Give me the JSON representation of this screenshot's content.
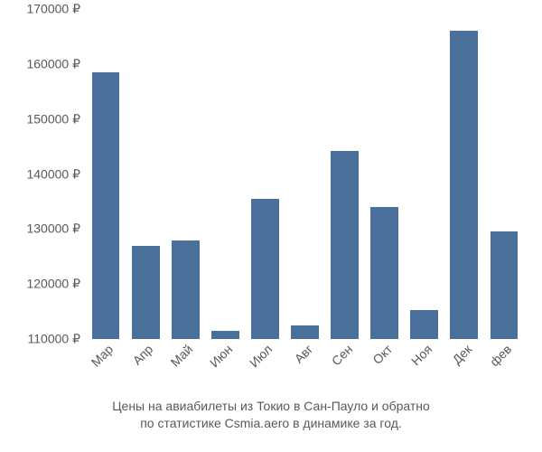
{
  "chart": {
    "type": "bar",
    "categories": [
      "Мар",
      "Апр",
      "Май",
      "Июн",
      "Июл",
      "Авг",
      "Сен",
      "Окт",
      "Ноя",
      "Дек",
      "фев"
    ],
    "values": [
      158500,
      127000,
      128000,
      111500,
      135500,
      112400,
      144200,
      134000,
      115200,
      166000,
      129500
    ],
    "bar_color": "#4a6f9b",
    "bar_width": 0.7,
    "ylim": [
      110000,
      170000
    ],
    "ytick_step": 10000,
    "ytick_labels": [
      "110000 ₽",
      "120000 ₽",
      "130000 ₽",
      "140000 ₽",
      "150000 ₽",
      "160000 ₽",
      "170000 ₽"
    ],
    "axis_label_color": "#595959",
    "axis_label_fontsize": 14,
    "xlabel_rotation": -45,
    "background_color": "#ffffff"
  },
  "caption": {
    "line1": "Цены на авиабилеты из Токио в Сан-Пауло и обратно",
    "line2": "по статистике Csmia.aero в динамике за год.",
    "fontsize": 14,
    "color": "#595959"
  }
}
